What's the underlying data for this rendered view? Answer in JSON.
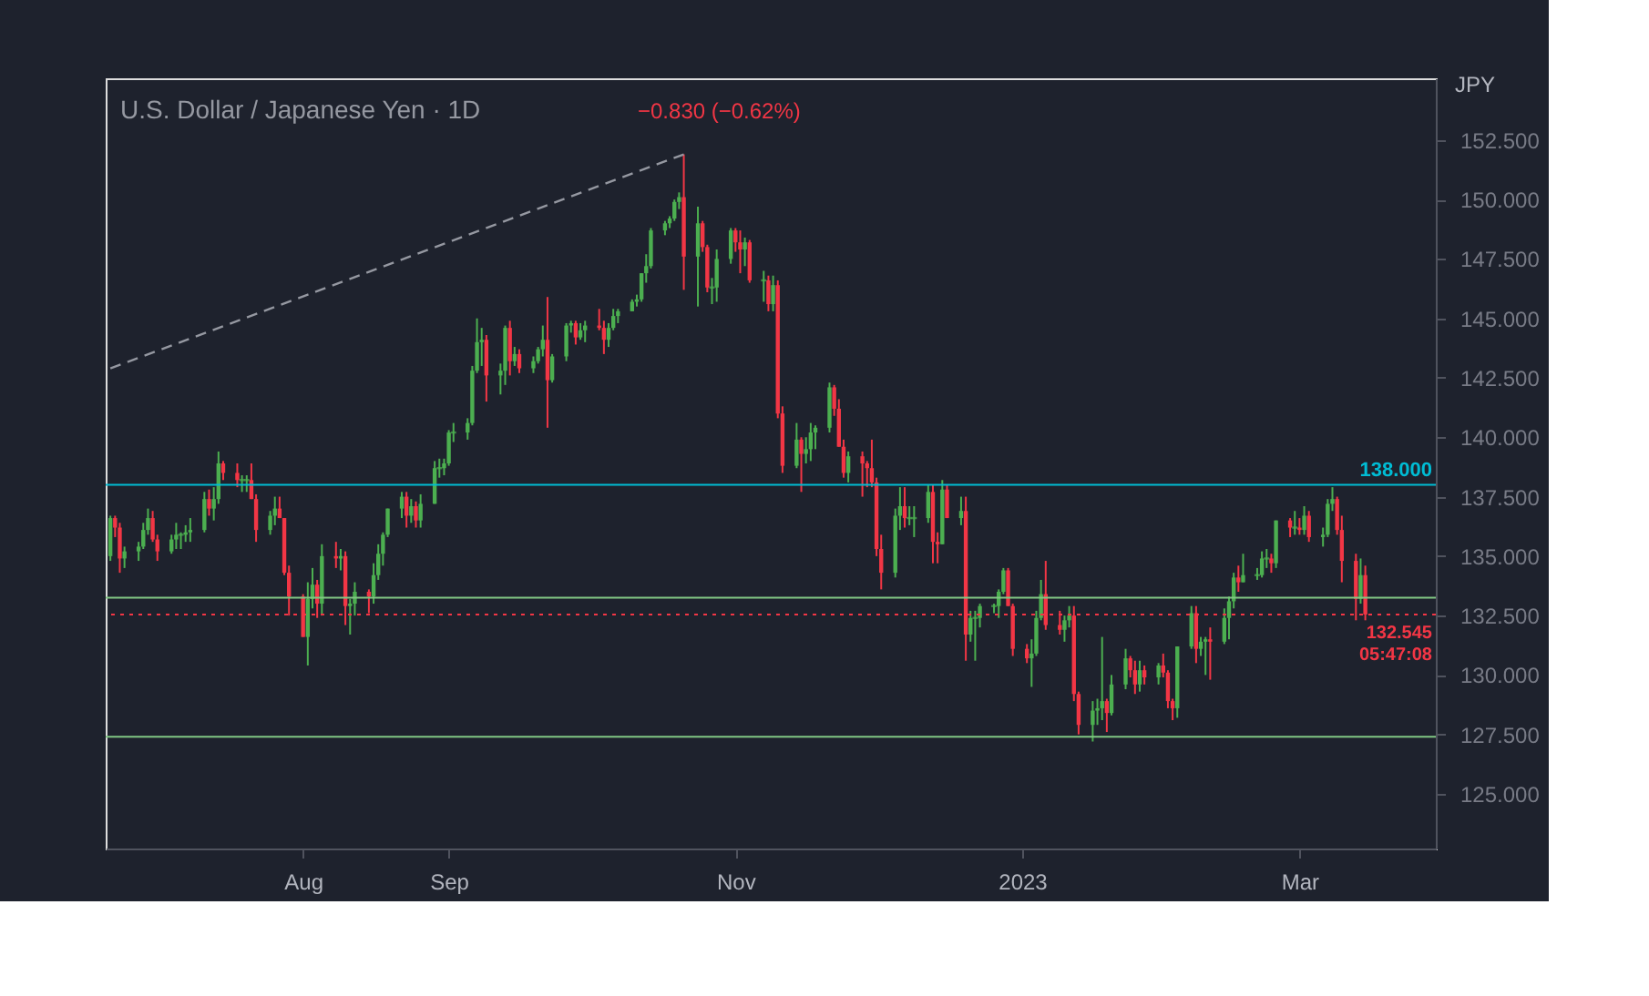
{
  "chart_data": {
    "type": "candlestick",
    "title": "U.S. Dollar / Japanese Yen · 1D",
    "ylabel": "JPY",
    "annotations": [
      "−0.830 (−0.62%)"
    ],
    "grid": false,
    "xlim": [
      "2022-06-20",
      "2023-03-30"
    ],
    "xticks": [
      {
        "value": "2022-08-01",
        "label": "Aug"
      },
      {
        "value": "2022-09-01",
        "label": "Sep"
      },
      {
        "value": "2022-11-01",
        "label": "Nov"
      },
      {
        "value": "2023-01-01",
        "label": "2023"
      },
      {
        "value": "2023-03-01",
        "label": "Mar"
      }
    ],
    "ylim": [
      122.7,
      155.1
    ],
    "yticks": [
      {
        "value": 125,
        "label": "125.000"
      },
      {
        "value": 127.5,
        "label": "127.500"
      },
      {
        "value": 130,
        "label": "130.000"
      },
      {
        "value": 132.5,
        "label": "132.500"
      },
      {
        "value": 135,
        "label": "135.000"
      },
      {
        "value": 137.5,
        "label": "137.500"
      },
      {
        "value": 140,
        "label": "140.000"
      },
      {
        "value": 142.5,
        "label": "142.500"
      },
      {
        "value": 145,
        "label": "145.000"
      },
      {
        "value": 147.5,
        "label": "147.500"
      },
      {
        "value": 150,
        "label": "150.000"
      },
      {
        "value": 152.5,
        "label": "152.500"
      }
    ],
    "ref_lines": [
      {
        "axis": "y",
        "value": 138,
        "label": "138.000",
        "color": "#00bcd4",
        "line_style": "solid"
      },
      {
        "axis": "y",
        "value": 133.25,
        "label": null,
        "color": "#81c784",
        "line_style": "solid"
      },
      {
        "axis": "y",
        "value": 127.4,
        "label": null,
        "color": "#81c784",
        "line_style": "solid"
      },
      {
        "axis": "y",
        "value": 132.545,
        "label": "132.545\n05:47:08",
        "color": "#f23645",
        "line_style": "dotted"
      }
    ],
    "series": [
      {
        "type": "line",
        "x": [
          "2022-06-21",
          "2022-10-21"
        ],
        "values": [
          142.9,
          151.9
        ],
        "color": "#9598a1",
        "line_style": "dashed"
      }
    ],
    "x": [
      "2022-06-21",
      "2022-06-22",
      "2022-06-23",
      "2022-06-24",
      "2022-06-27",
      "2022-06-28",
      "2022-06-29",
      "2022-06-30",
      "2022-07-01",
      "2022-07-04",
      "2022-07-05",
      "2022-07-06",
      "2022-07-07",
      "2022-07-08",
      "2022-07-11",
      "2022-07-12",
      "2022-07-13",
      "2022-07-14",
      "2022-07-15",
      "2022-07-18",
      "2022-07-19",
      "2022-07-20",
      "2022-07-21",
      "2022-07-22",
      "2022-07-25",
      "2022-07-26",
      "2022-07-27",
      "2022-07-28",
      "2022-07-29",
      "2022-08-01",
      "2022-08-02",
      "2022-08-03",
      "2022-08-04",
      "2022-08-05",
      "2022-08-08",
      "2022-08-09",
      "2022-08-10",
      "2022-08-11",
      "2022-08-12",
      "2022-08-15",
      "2022-08-16",
      "2022-08-17",
      "2022-08-18",
      "2022-08-19",
      "2022-08-22",
      "2022-08-23",
      "2022-08-24",
      "2022-08-25",
      "2022-08-26",
      "2022-08-29",
      "2022-08-30",
      "2022-08-31",
      "2022-09-01",
      "2022-09-02",
      "2022-09-05",
      "2022-09-06",
      "2022-09-07",
      "2022-09-08",
      "2022-09-09",
      "2022-09-12",
      "2022-09-13",
      "2022-09-14",
      "2022-09-15",
      "2022-09-16",
      "2022-09-19",
      "2022-09-20",
      "2022-09-21",
      "2022-09-22",
      "2022-09-23",
      "2022-09-26",
      "2022-09-27",
      "2022-09-28",
      "2022-09-29",
      "2022-09-30",
      "2022-10-03",
      "2022-10-04",
      "2022-10-05",
      "2022-10-06",
      "2022-10-07",
      "2022-10-10",
      "2022-10-11",
      "2022-10-12",
      "2022-10-13",
      "2022-10-14",
      "2022-10-17",
      "2022-10-18",
      "2022-10-19",
      "2022-10-20",
      "2022-10-21",
      "2022-10-24",
      "2022-10-25",
      "2022-10-26",
      "2022-10-27",
      "2022-10-28",
      "2022-10-31",
      "2022-11-01",
      "2022-11-02",
      "2022-11-03",
      "2022-11-04",
      "2022-11-07",
      "2022-11-08",
      "2022-11-09",
      "2022-11-10",
      "2022-11-11",
      "2022-11-14",
      "2022-11-15",
      "2022-11-16",
      "2022-11-17",
      "2022-11-18",
      "2022-11-21",
      "2022-11-22",
      "2022-11-23",
      "2022-11-24",
      "2022-11-25",
      "2022-11-28",
      "2022-11-29",
      "2022-11-30",
      "2022-12-01",
      "2022-12-02",
      "2022-12-05",
      "2022-12-06",
      "2022-12-07",
      "2022-12-08",
      "2022-12-09",
      "2022-12-12",
      "2022-12-13",
      "2022-12-14",
      "2022-12-15",
      "2022-12-16",
      "2022-12-19",
      "2022-12-20",
      "2022-12-21",
      "2022-12-22",
      "2022-12-23",
      "2022-12-26",
      "2022-12-27",
      "2022-12-28",
      "2022-12-29",
      "2022-12-30",
      "2023-01-02",
      "2023-01-03",
      "2023-01-04",
      "2023-01-05",
      "2023-01-06",
      "2023-01-09",
      "2023-01-10",
      "2023-01-11",
      "2023-01-12",
      "2023-01-13",
      "2023-01-16",
      "2023-01-17",
      "2023-01-18",
      "2023-01-19",
      "2023-01-20",
      "2023-01-23",
      "2023-01-24",
      "2023-01-25",
      "2023-01-26",
      "2023-01-27",
      "2023-01-30",
      "2023-01-31",
      "2023-02-01",
      "2023-02-02",
      "2023-02-03",
      "2023-02-06",
      "2023-02-07",
      "2023-02-08",
      "2023-02-09",
      "2023-02-10",
      "2023-02-13",
      "2023-02-14",
      "2023-02-15",
      "2023-02-16",
      "2023-02-17",
      "2023-02-20",
      "2023-02-21",
      "2023-02-22",
      "2023-02-23",
      "2023-02-24",
      "2023-02-27",
      "2023-02-28",
      "2023-03-01",
      "2023-03-02",
      "2023-03-03",
      "2023-03-06",
      "2023-03-07",
      "2023-03-08",
      "2023-03-09",
      "2023-03-10",
      "2023-03-13",
      "2023-03-14",
      "2023-03-15"
    ],
    "ohlc": [
      [
        135.0,
        136.7,
        134.8,
        136.6
      ],
      [
        136.6,
        136.7,
        135.8,
        136.2
      ],
      [
        136.2,
        136.4,
        134.3,
        134.9
      ],
      [
        134.9,
        135.4,
        134.5,
        135.2
      ],
      [
        135.2,
        135.6,
        134.8,
        135.4
      ],
      [
        135.4,
        136.4,
        135.3,
        136.1
      ],
      [
        136.1,
        137.0,
        135.9,
        136.6
      ],
      [
        136.6,
        136.9,
        135.6,
        135.7
      ],
      [
        135.7,
        135.9,
        134.8,
        135.2
      ],
      [
        135.2,
        135.9,
        135.1,
        135.7
      ],
      [
        135.7,
        136.4,
        135.3,
        135.9
      ],
      [
        135.9,
        136.0,
        135.3,
        135.9
      ],
      [
        135.9,
        136.3,
        135.6,
        136.0
      ],
      [
        136.0,
        136.6,
        135.6,
        136.1
      ],
      [
        136.1,
        137.7,
        136.0,
        137.4
      ],
      [
        137.4,
        137.8,
        136.7,
        137.0
      ],
      [
        137.0,
        137.9,
        136.5,
        137.4
      ],
      [
        137.4,
        139.4,
        137.2,
        138.9
      ],
      [
        138.9,
        139.0,
        138.2,
        138.5
      ],
      [
        138.5,
        138.9,
        137.9,
        138.2
      ],
      [
        138.2,
        138.4,
        137.7,
        138.2
      ],
      [
        138.2,
        138.4,
        137.7,
        138.2
      ],
      [
        138.2,
        138.9,
        137.4,
        137.4
      ],
      [
        137.4,
        137.6,
        135.6,
        136.1
      ],
      [
        136.1,
        136.9,
        135.9,
        136.7
      ],
      [
        136.7,
        137.5,
        136.3,
        137.0
      ],
      [
        137.0,
        137.5,
        136.6,
        136.6
      ],
      [
        136.6,
        136.6,
        134.2,
        134.3
      ],
      [
        134.3,
        134.6,
        132.5,
        133.3
      ],
      [
        133.3,
        133.4,
        131.6,
        131.6
      ],
      [
        131.6,
        133.9,
        130.4,
        133.2
      ],
      [
        133.2,
        134.5,
        132.8,
        133.8
      ],
      [
        133.8,
        134.0,
        132.4,
        133.0
      ],
      [
        133.0,
        135.5,
        132.5,
        135.0
      ],
      [
        135.0,
        135.6,
        134.5,
        134.9
      ],
      [
        134.9,
        135.3,
        134.4,
        135.0
      ],
      [
        135.0,
        135.2,
        132.1,
        132.9
      ],
      [
        132.9,
        133.2,
        131.7,
        133.0
      ],
      [
        133.0,
        133.9,
        132.5,
        133.5
      ],
      [
        133.5,
        133.6,
        132.6,
        133.3
      ],
      [
        133.3,
        134.7,
        133.0,
        134.2
      ],
      [
        134.2,
        135.5,
        134.0,
        135.1
      ],
      [
        135.1,
        136.0,
        134.6,
        135.9
      ],
      [
        135.9,
        137.0,
        135.8,
        137.0
      ],
      [
        137.0,
        137.7,
        136.6,
        137.5
      ],
      [
        137.5,
        137.7,
        136.2,
        136.7
      ],
      [
        136.7,
        137.4,
        136.4,
        137.1
      ],
      [
        137.1,
        137.3,
        136.2,
        136.5
      ],
      [
        136.5,
        137.6,
        136.2,
        137.2
      ],
      [
        137.2,
        139.0,
        137.2,
        138.7
      ],
      [
        138.7,
        139.1,
        138.3,
        138.7
      ],
      [
        138.7,
        139.1,
        138.4,
        138.9
      ],
      [
        138.9,
        140.3,
        138.8,
        140.2
      ],
      [
        140.2,
        140.6,
        139.8,
        140.2
      ],
      [
        140.2,
        140.8,
        139.9,
        140.6
      ],
      [
        140.6,
        143.0,
        140.5,
        142.8
      ],
      [
        142.8,
        145.0,
        142.7,
        144.0
      ],
      [
        144.0,
        144.6,
        143.0,
        144.1
      ],
      [
        144.1,
        144.3,
        141.5,
        142.6
      ],
      [
        142.6,
        143.1,
        141.8,
        142.8
      ],
      [
        142.8,
        144.7,
        142.2,
        144.6
      ],
      [
        144.6,
        144.9,
        142.6,
        143.2
      ],
      [
        143.2,
        143.8,
        143.0,
        143.5
      ],
      [
        143.5,
        143.7,
        142.7,
        142.9
      ],
      [
        142.9,
        143.4,
        142.7,
        143.2
      ],
      [
        143.2,
        143.8,
        143.1,
        143.7
      ],
      [
        143.7,
        144.7,
        143.4,
        144.1
      ],
      [
        144.1,
        145.9,
        140.4,
        142.4
      ],
      [
        142.4,
        143.5,
        142.3,
        143.4
      ],
      [
        143.4,
        144.8,
        143.2,
        144.7
      ],
      [
        144.7,
        144.9,
        144.4,
        144.8
      ],
      [
        144.8,
        144.9,
        143.9,
        144.2
      ],
      [
        144.2,
        144.8,
        144.1,
        144.5
      ],
      [
        144.5,
        144.9,
        144.0,
        144.7
      ],
      [
        144.7,
        145.4,
        144.5,
        144.6
      ],
      [
        144.6,
        144.9,
        143.5,
        144.1
      ],
      [
        144.1,
        144.8,
        143.8,
        144.6
      ],
      [
        144.6,
        145.4,
        144.5,
        145.1
      ],
      [
        145.1,
        145.4,
        144.8,
        145.3
      ],
      [
        145.3,
        145.8,
        145.3,
        145.7
      ],
      [
        145.7,
        146.0,
        145.5,
        145.8
      ],
      [
        145.8,
        146.9,
        145.7,
        146.9
      ],
      [
        146.9,
        147.7,
        146.5,
        147.2
      ],
      [
        147.2,
        148.8,
        147.1,
        148.7
      ],
      [
        148.7,
        149.1,
        148.5,
        149.0
      ],
      [
        149.0,
        149.3,
        148.8,
        149.2
      ],
      [
        149.2,
        150.0,
        149.1,
        149.9
      ],
      [
        149.9,
        150.3,
        149.6,
        150.1
      ],
      [
        150.1,
        151.9,
        146.2,
        147.6
      ],
      [
        147.6,
        149.7,
        145.5,
        149.0
      ],
      [
        149.0,
        149.1,
        147.8,
        148.0
      ],
      [
        148.0,
        148.1,
        146.1,
        146.3
      ],
      [
        146.3,
        146.7,
        145.6,
        146.3
      ],
      [
        146.3,
        147.9,
        145.7,
        147.5
      ],
      [
        147.5,
        148.8,
        147.3,
        148.7
      ],
      [
        148.7,
        148.8,
        147.8,
        148.2
      ],
      [
        148.2,
        148.7,
        146.9,
        147.9
      ],
      [
        147.9,
        148.4,
        147.2,
        148.2
      ],
      [
        148.2,
        148.3,
        146.5,
        146.6
      ],
      [
        146.6,
        147.0,
        145.7,
        146.6
      ],
      [
        146.6,
        146.8,
        145.3,
        145.6
      ],
      [
        145.6,
        146.8,
        145.3,
        146.4
      ],
      [
        146.4,
        146.6,
        140.8,
        141.0
      ],
      [
        141.0,
        141.3,
        138.5,
        138.8
      ],
      [
        138.8,
        140.6,
        138.7,
        139.9
      ],
      [
        139.9,
        140.0,
        137.7,
        139.3
      ],
      [
        139.3,
        140.0,
        138.9,
        139.5
      ],
      [
        139.5,
        140.6,
        139.0,
        140.2
      ],
      [
        140.2,
        140.5,
        139.5,
        140.4
      ],
      [
        140.4,
        142.3,
        140.2,
        142.1
      ],
      [
        142.1,
        142.2,
        140.9,
        141.2
      ],
      [
        141.2,
        141.6,
        139.6,
        139.6
      ],
      [
        139.6,
        139.9,
        138.3,
        138.5
      ],
      [
        138.5,
        139.4,
        138.1,
        139.2
      ],
      [
        139.2,
        139.4,
        137.5,
        138.9
      ],
      [
        138.9,
        139.0,
        137.9,
        138.7
      ],
      [
        138.7,
        139.9,
        137.9,
        138.1
      ],
      [
        138.1,
        138.3,
        135.0,
        135.3
      ],
      [
        135.3,
        135.9,
        133.6,
        134.3
      ],
      [
        134.3,
        137.0,
        134.1,
        136.7
      ],
      [
        136.7,
        137.9,
        136.1,
        137.1
      ],
      [
        137.1,
        137.9,
        136.2,
        136.6
      ],
      [
        136.6,
        137.1,
        136.3,
        136.6
      ],
      [
        136.6,
        137.1,
        135.8,
        136.6
      ],
      [
        136.6,
        138.0,
        136.4,
        137.7
      ],
      [
        137.7,
        138.0,
        134.7,
        135.6
      ],
      [
        135.6,
        136.0,
        134.7,
        135.5
      ],
      [
        135.5,
        138.2,
        135.5,
        137.8
      ],
      [
        137.8,
        138.0,
        136.6,
        136.6
      ],
      [
        136.6,
        137.5,
        136.3,
        136.9
      ],
      [
        136.9,
        137.5,
        130.6,
        131.7
      ],
      [
        131.7,
        132.7,
        131.4,
        132.4
      ],
      [
        132.4,
        132.7,
        130.6,
        132.4
      ],
      [
        132.4,
        133.0,
        132.0,
        132.9
      ],
      [
        132.9,
        133.0,
        132.6,
        132.9
      ],
      [
        132.9,
        133.6,
        132.4,
        133.5
      ],
      [
        133.5,
        134.5,
        133.4,
        134.4
      ],
      [
        134.4,
        134.5,
        132.9,
        132.9
      ],
      [
        132.9,
        133.0,
        130.8,
        131.1
      ],
      [
        131.1,
        131.3,
        130.5,
        130.7
      ],
      [
        130.7,
        131.5,
        129.5,
        130.9
      ],
      [
        130.9,
        132.7,
        130.8,
        132.4
      ],
      [
        132.4,
        134.0,
        132.3,
        133.4
      ],
      [
        133.4,
        134.8,
        131.9,
        132.1
      ],
      [
        132.1,
        132.7,
        131.7,
        131.9
      ],
      [
        131.9,
        132.5,
        131.4,
        132.3
      ],
      [
        132.3,
        132.9,
        132.0,
        132.5
      ],
      [
        132.5,
        132.9,
        128.9,
        129.2
      ],
      [
        129.2,
        129.3,
        127.5,
        127.9
      ],
      [
        127.9,
        128.9,
        127.2,
        128.5
      ],
      [
        128.5,
        129.0,
        127.9,
        128.6
      ],
      [
        128.6,
        131.6,
        128.1,
        128.9
      ],
      [
        128.9,
        129.0,
        127.6,
        128.4
      ],
      [
        128.4,
        130.0,
        128.3,
        129.6
      ],
      [
        129.6,
        131.1,
        129.4,
        130.7
      ],
      [
        130.7,
        130.8,
        129.9,
        130.2
      ],
      [
        130.2,
        130.6,
        129.2,
        129.6
      ],
      [
        129.6,
        130.6,
        129.3,
        130.2
      ],
      [
        130.2,
        130.4,
        129.6,
        129.9
      ],
      [
        129.9,
        130.5,
        129.6,
        130.4
      ],
      [
        130.4,
        130.9,
        129.9,
        130.1
      ],
      [
        130.1,
        130.2,
        128.6,
        128.9
      ],
      [
        128.9,
        129.0,
        128.1,
        128.6
      ],
      [
        128.6,
        131.2,
        128.2,
        131.2
      ],
      [
        131.2,
        132.9,
        131.1,
        132.6
      ],
      [
        132.6,
        132.9,
        130.5,
        131.1
      ],
      [
        131.1,
        131.6,
        130.8,
        131.4
      ],
      [
        131.4,
        131.6,
        130.0,
        131.5
      ],
      [
        131.5,
        132.0,
        129.8,
        131.4
      ],
      [
        131.4,
        132.8,
        131.3,
        132.4
      ],
      [
        132.4,
        133.3,
        131.5,
        133.1
      ],
      [
        133.1,
        134.3,
        132.8,
        134.1
      ],
      [
        134.1,
        134.6,
        133.5,
        133.9
      ],
      [
        133.9,
        135.1,
        133.9,
        134.2
      ],
      [
        134.2,
        134.5,
        134.0,
        134.2
      ],
      [
        134.2,
        135.2,
        134.1,
        134.9
      ],
      [
        134.9,
        135.3,
        134.5,
        134.9
      ],
      [
        134.9,
        135.1,
        134.3,
        134.7
      ],
      [
        134.7,
        136.5,
        134.5,
        136.5
      ],
      [
        136.5,
        136.6,
        135.8,
        136.2
      ],
      [
        136.2,
        136.9,
        135.9,
        136.2
      ],
      [
        136.2,
        136.6,
        135.9,
        136.1
      ],
      [
        136.1,
        137.1,
        135.9,
        136.7
      ],
      [
        136.7,
        136.9,
        135.6,
        135.8
      ],
      [
        135.8,
        136.2,
        135.4,
        135.9
      ],
      [
        135.9,
        137.4,
        135.8,
        137.2
      ],
      [
        137.2,
        137.9,
        136.9,
        137.4
      ],
      [
        137.4,
        137.5,
        135.9,
        136.1
      ],
      [
        136.1,
        136.7,
        133.9,
        134.8
      ],
      [
        134.8,
        135.1,
        132.3,
        133.2
      ],
      [
        133.2,
        134.9,
        133.0,
        134.2
      ],
      [
        134.2,
        134.6,
        132.3,
        132.545
      ]
    ]
  }
}
